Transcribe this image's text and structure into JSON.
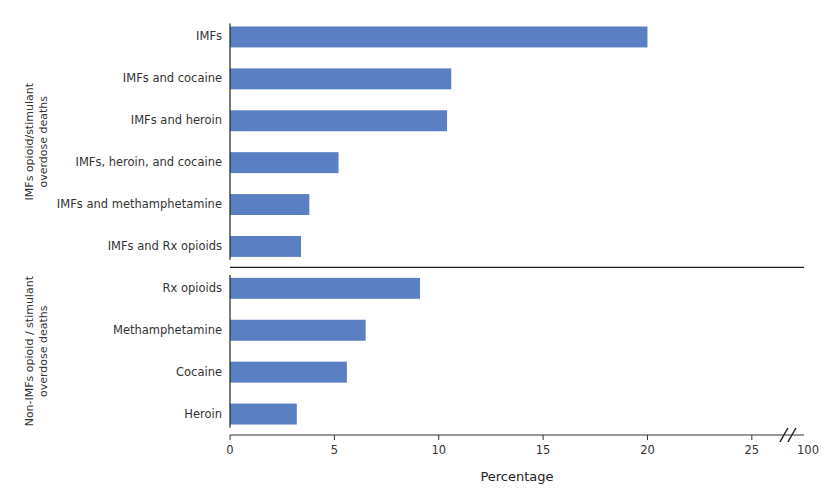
{
  "chart_data": {
    "type": "bar",
    "orientation": "horizontal",
    "categories": [
      "IMFs",
      "IMFs and cocaine",
      "IMFs and heroin",
      "IMFs, heroin, and cocaine",
      "IMFs and methamphetamine",
      "IMFs and Rx opioids",
      "Rx opioids",
      "Methamphetamine",
      "Cocaine",
      "Heroin"
    ],
    "values": [
      20.0,
      10.6,
      10.4,
      5.2,
      3.8,
      3.4,
      9.1,
      6.5,
      5.6,
      3.2
    ],
    "color": "#5B7FC3",
    "x_label": "Percentage",
    "xlim": [
      0,
      27.5
    ],
    "xticks": [
      0,
      5,
      10,
      15,
      20,
      25
    ],
    "grid": false,
    "groups": [
      {
        "label": "IMFs opioid/stimulant\noverdose deaths",
        "count": 6
      },
      {
        "label": "Non-IMFs opioid / stimulant\noverdose deaths",
        "count": 4
      }
    ],
    "annotations": [
      {
        "text": "100"
      }
    ]
  }
}
